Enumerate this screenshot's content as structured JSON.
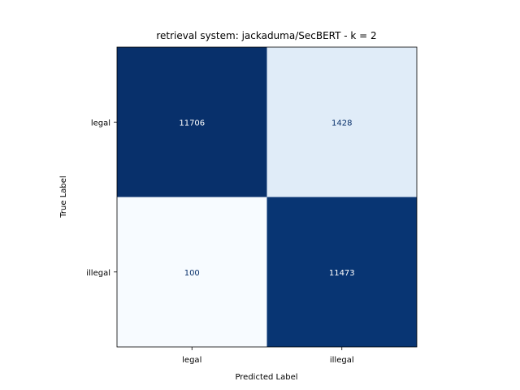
{
  "chart_data": {
    "type": "heatmap",
    "title": "retrieval system: jackaduma/SecBERT - k = 2",
    "xlabel": "Predicted Label",
    "ylabel": "True Label",
    "x_categories": [
      "legal",
      "illegal"
    ],
    "y_categories": [
      "legal",
      "illegal"
    ],
    "matrix": [
      [
        11706,
        1428
      ],
      [
        100,
        11473
      ]
    ],
    "colormap": "Blues",
    "color_low": "#f7fbff",
    "color_high": "#08306b",
    "text_dark": "#08306b",
    "text_light": "#ffffff",
    "grid": false
  }
}
